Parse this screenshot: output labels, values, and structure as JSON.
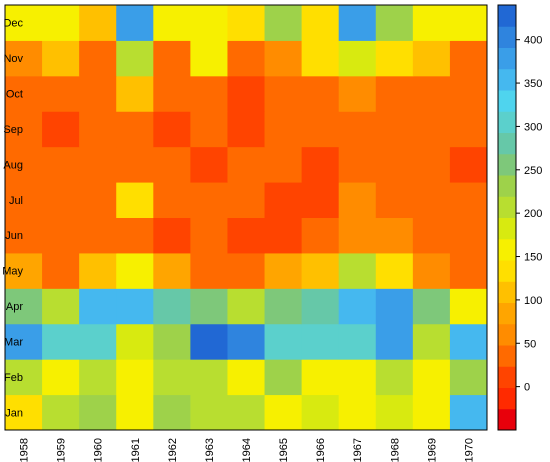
{
  "chart_data": {
    "type": "heatmap",
    "title": "",
    "xlabel": "",
    "ylabel": "",
    "x": [
      "1958",
      "1959",
      "1960",
      "1961",
      "1962",
      "1963",
      "1964",
      "1965",
      "1966",
      "1967",
      "1968",
      "1969",
      "1970"
    ],
    "y": [
      "Jan",
      "Feb",
      "Mar",
      "Apr",
      "May",
      "Jun",
      "Jul",
      "Aug",
      "Sep",
      "Oct",
      "Nov",
      "Dec"
    ],
    "values": [
      [
        125,
        190,
        220,
        160,
        220,
        195,
        210,
        150,
        175,
        160,
        185,
        160,
        340
      ],
      [
        190,
        160,
        190,
        160,
        190,
        190,
        160,
        220,
        155,
        160,
        190,
        140,
        220
      ],
      [
        370,
        300,
        300,
        180,
        230,
        420,
        390,
        300,
        310,
        290,
        380,
        190,
        350
      ],
      [
        240,
        200,
        340,
        340,
        280,
        250,
        200,
        240,
        280,
        340,
        380,
        240,
        160
      ],
      [
        70,
        30,
        110,
        140,
        70,
        25,
        25,
        70,
        110,
        190,
        130,
        50,
        30
      ],
      [
        20,
        20,
        30,
        30,
        0,
        30,
        0,
        0,
        20,
        50,
        50,
        30,
        30
      ],
      [
        20,
        20,
        30,
        120,
        25,
        25,
        25,
        0,
        0,
        60,
        25,
        25,
        25
      ],
      [
        30,
        30,
        30,
        30,
        30,
        0,
        20,
        20,
        5,
        25,
        20,
        25,
        0
      ],
      [
        30,
        0,
        25,
        25,
        0,
        20,
        5,
        20,
        25,
        25,
        25,
        25,
        25
      ],
      [
        30,
        30,
        30,
        110,
        25,
        25,
        5,
        30,
        25,
        60,
        30,
        25,
        25
      ],
      [
        60,
        100,
        30,
        200,
        25,
        160,
        25,
        60,
        120,
        180,
        130,
        100,
        25
      ],
      [
        160,
        150,
        100,
        380,
        140,
        160,
        120,
        220,
        120,
        370,
        220,
        160,
        160
      ]
    ],
    "colorbar": {
      "min": -50,
      "max": 440,
      "ticks": [
        0,
        50,
        100,
        150,
        200,
        250,
        300,
        350,
        400
      ],
      "stops": [
        "#e8000b",
        "#ff2a00",
        "#ff4400",
        "#ff6a00",
        "#ff8c00",
        "#ffa500",
        "#ffc000",
        "#ffdf00",
        "#f7f000",
        "#d8ea10",
        "#b8de30",
        "#9ed24a",
        "#7ec87a",
        "#66c8a8",
        "#5bd0cc",
        "#4fd4ee",
        "#45b8ef",
        "#3a9ee8",
        "#2f84de",
        "#2168d4"
      ],
      "stop_values": [
        -50,
        -25,
        0,
        25,
        50,
        75,
        100,
        125,
        150,
        175,
        200,
        225,
        250,
        275,
        300,
        325,
        350,
        375,
        400,
        425
      ]
    },
    "grid": false,
    "legend": "colorbar-right"
  }
}
